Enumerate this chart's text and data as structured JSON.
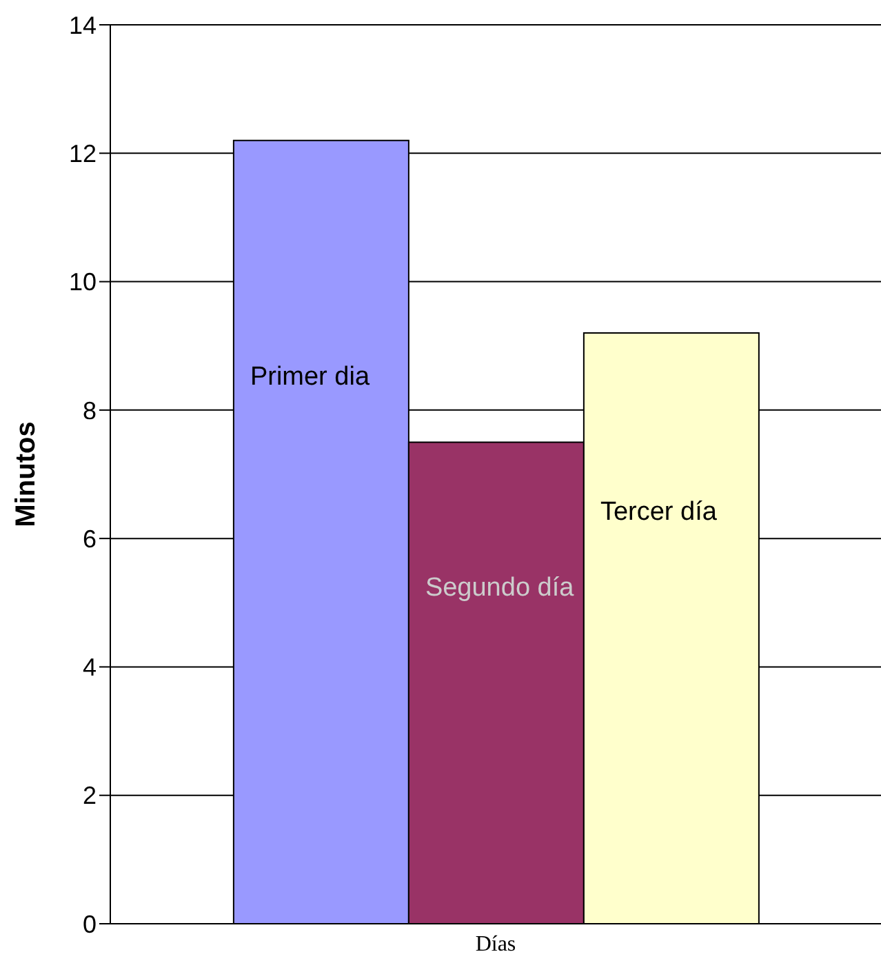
{
  "chart_data": {
    "type": "bar",
    "ylabel": "Minutos",
    "categories": [
      "Días"
    ],
    "series": [
      {
        "name": "Primer dia",
        "color": "#9999ff",
        "values": [
          12.2
        ]
      },
      {
        "name": "Segundo día",
        "color": "#993366",
        "values": [
          7.5
        ]
      },
      {
        "name": "Tercer día",
        "color": "#ffffcc",
        "values": [
          9.2
        ]
      }
    ],
    "ylim": [
      0,
      14
    ],
    "yticks": [
      0,
      2,
      4,
      6,
      8,
      10,
      12,
      14
    ],
    "grid": "y",
    "legend": false
  }
}
